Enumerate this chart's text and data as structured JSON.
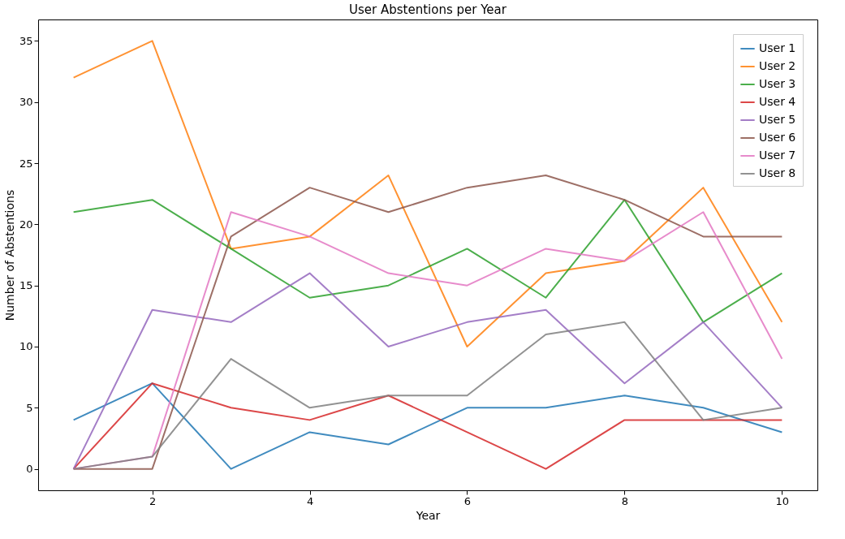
{
  "chart_data": {
    "type": "line",
    "title": "User Abstentions per Year",
    "xlabel": "Year",
    "ylabel": "Number of Abstentions",
    "x": [
      1,
      2,
      3,
      4,
      5,
      6,
      7,
      8,
      9,
      10
    ],
    "xlim": [
      0.55,
      10.45
    ],
    "xticks": [
      2,
      4,
      6,
      8,
      10
    ],
    "ylim": [
      -1.75,
      36.75
    ],
    "yticks": [
      0,
      5,
      10,
      15,
      20,
      25,
      30,
      35
    ],
    "grid": false,
    "legend": "top right",
    "marker": "none",
    "line_style": "solid",
    "series": [
      {
        "name": "User 1",
        "color": "#1f77b4",
        "values": [
          4,
          7,
          0,
          3,
          2,
          5,
          5,
          6,
          5,
          3
        ]
      },
      {
        "name": "User 2",
        "color": "#ff7f0e",
        "values": [
          32,
          35,
          18,
          19,
          24,
          10,
          16,
          17,
          23,
          12
        ]
      },
      {
        "name": "User 3",
        "color": "#2ca02c",
        "values": [
          21,
          22,
          18,
          14,
          15,
          18,
          14,
          22,
          12,
          16
        ]
      },
      {
        "name": "User 4",
        "color": "#d62728",
        "values": [
          0,
          7,
          5,
          4,
          6,
          3,
          0,
          4,
          4,
          4
        ]
      },
      {
        "name": "User 5",
        "color": "#9467bd",
        "values": [
          0,
          13,
          12,
          16,
          10,
          12,
          13,
          7,
          12,
          5
        ]
      },
      {
        "name": "User 6",
        "color": "#8c564b",
        "values": [
          0,
          0,
          19,
          23,
          21,
          23,
          24,
          22,
          19,
          19
        ]
      },
      {
        "name": "User 7",
        "color": "#e377c2",
        "values": [
          0,
          1,
          21,
          19,
          16,
          15,
          18,
          17,
          21,
          9
        ]
      },
      {
        "name": "User 8",
        "color": "#7f7f7f",
        "values": [
          0,
          1,
          9,
          5,
          6,
          6,
          11,
          12,
          4,
          5
        ]
      }
    ]
  }
}
